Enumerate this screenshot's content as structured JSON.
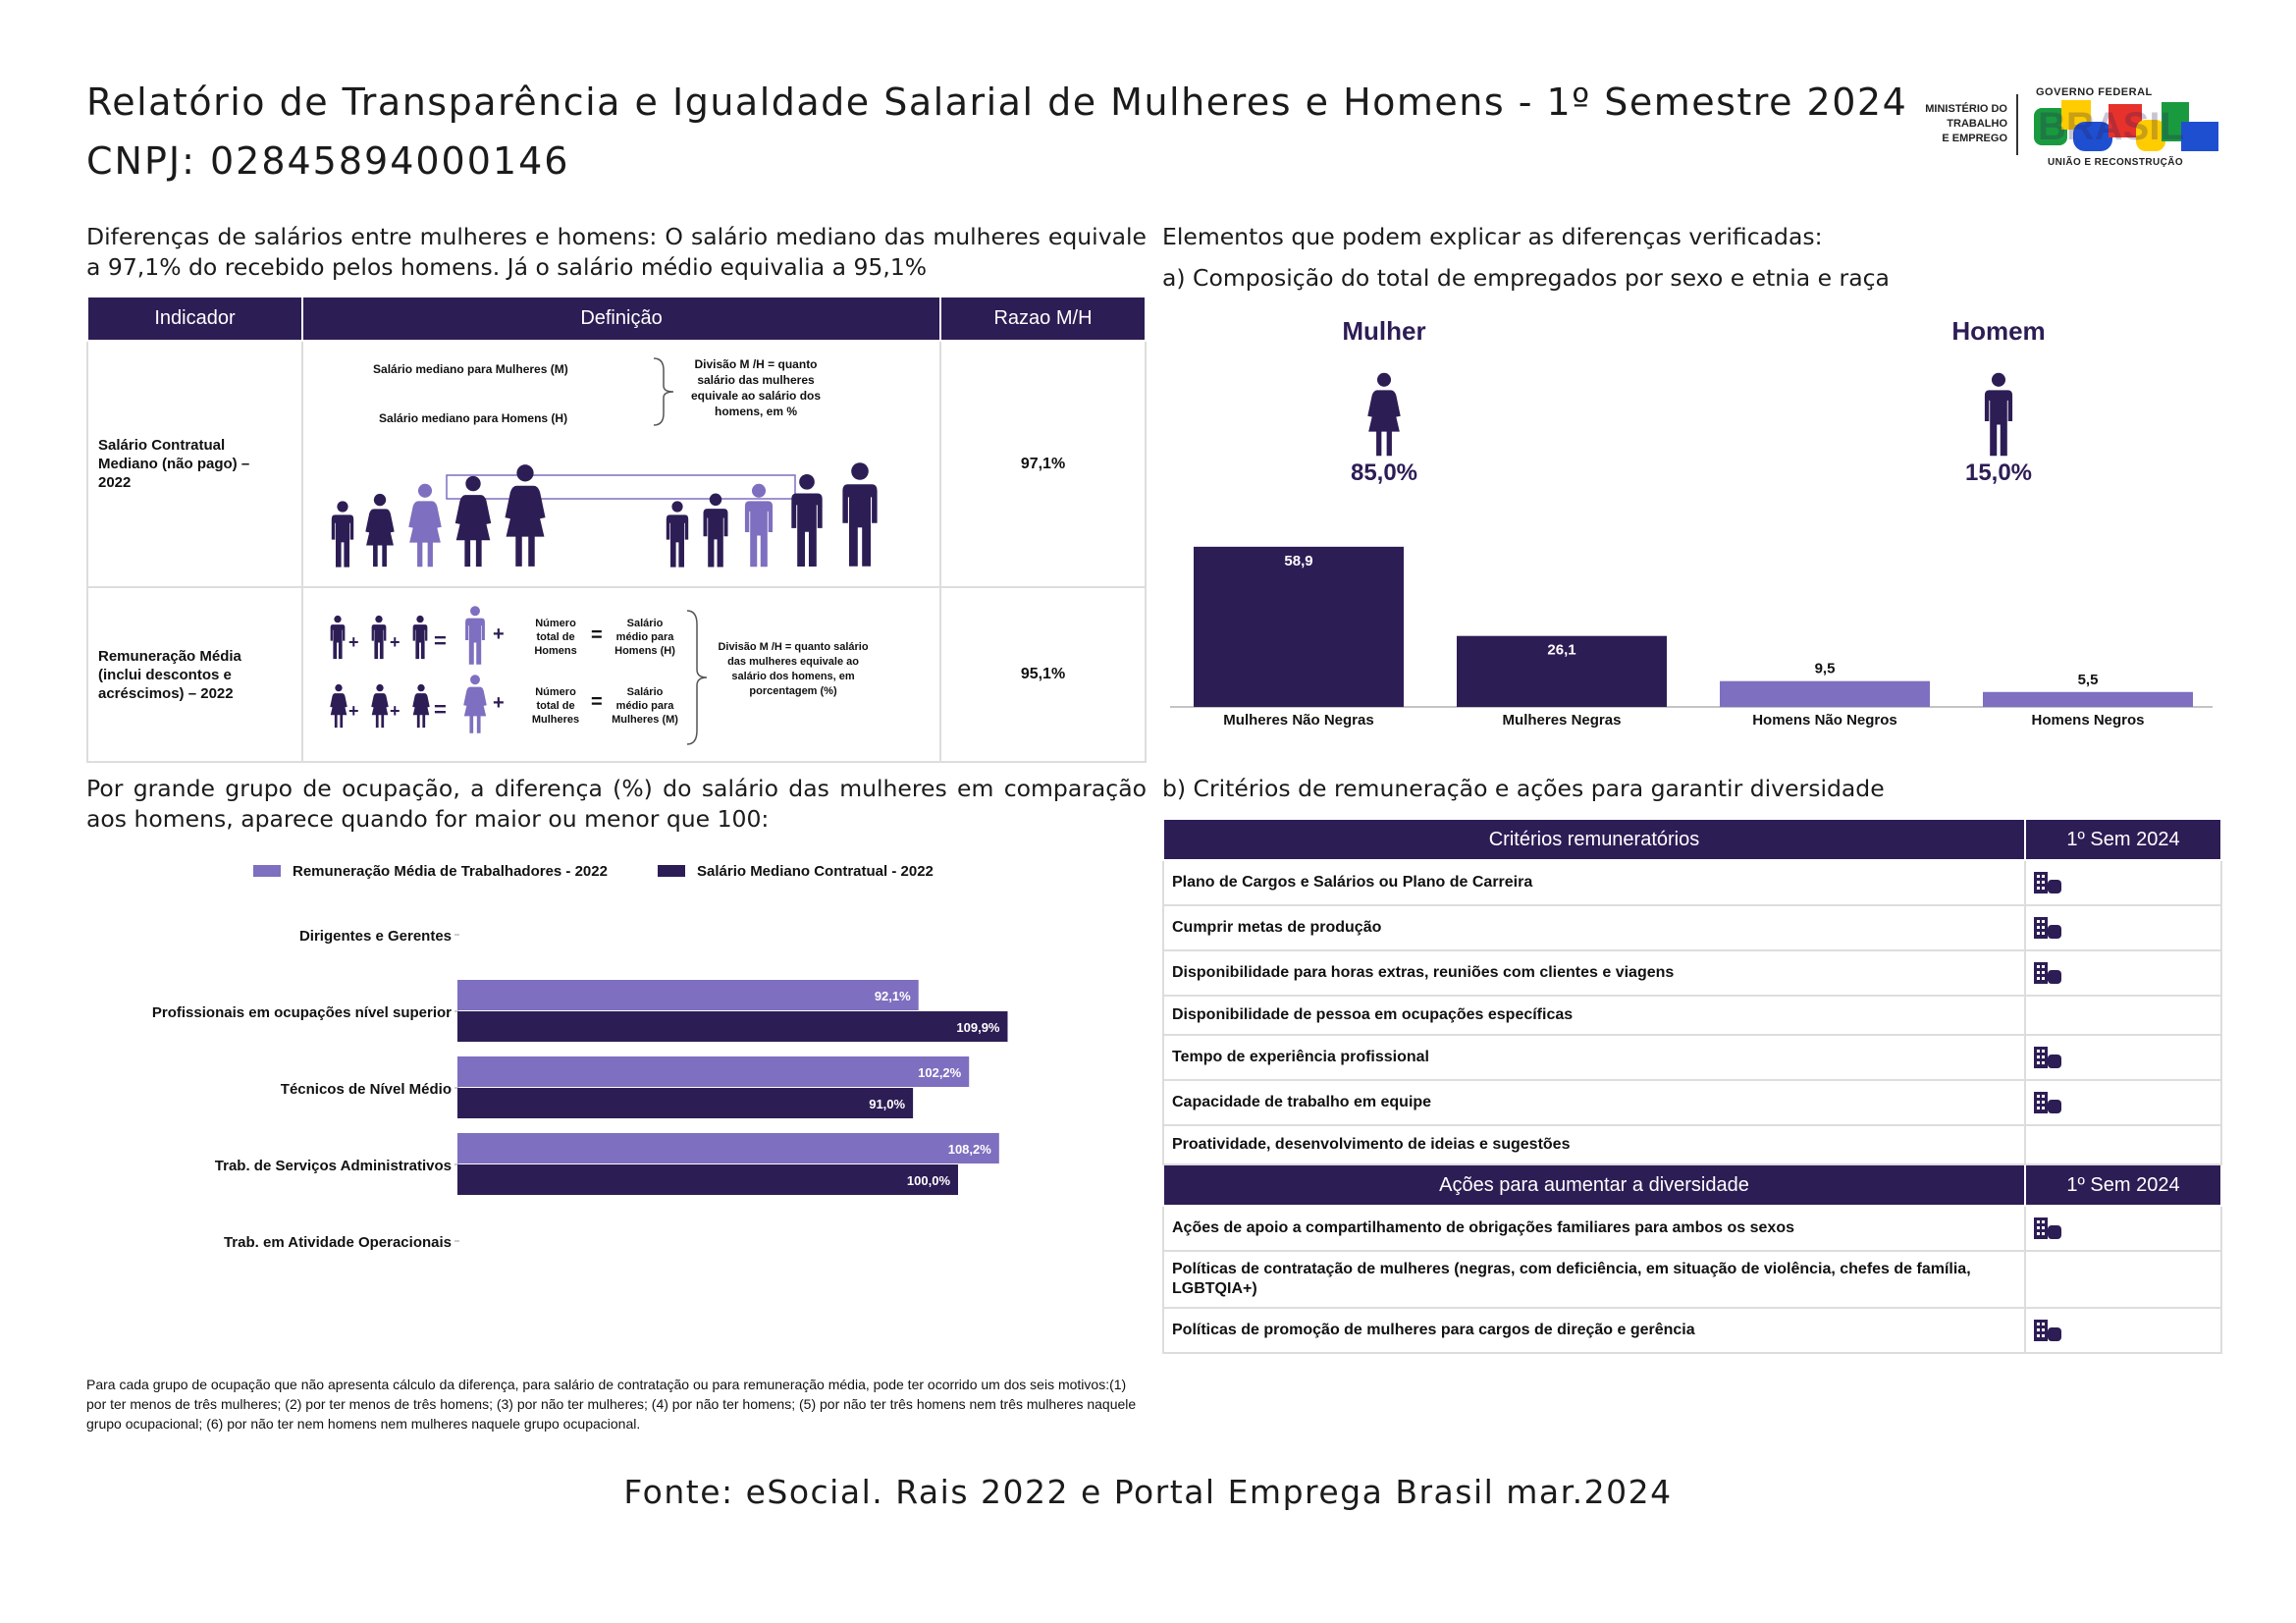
{
  "header": {
    "title": "Relatório de Transparência e Igualdade Salarial de Mulheres e Homens - 1º Semestre 2024",
    "cnpj": "CNPJ: 02845894000146"
  },
  "logos": {
    "mte_l1": "MINISTÉRIO DO",
    "mte_l2": "TRABALHO",
    "mte_l3": "E EMPREGO",
    "gov_top": "GOVERNO FEDERAL",
    "gov_word": "BRASIL",
    "gov_bottom": "UNIÃO E RECONSTRUÇÃO",
    "colors": [
      "#1a9a3f",
      "#ffcc00",
      "#1f4fd1",
      "#e6322b",
      "#6a3fb8"
    ]
  },
  "left_intro": "Diferenças de salários entre mulheres e homens: O salário mediano das mulheres equivale a 97,1% do recebido pelos homens. Já o salário médio equivalia a 95,1%",
  "indicator_table": {
    "headers": [
      "Indicador",
      "Definição",
      "Razao M/H"
    ],
    "row1": {
      "indicator": "Salário Contratual Mediano (não pago) – 2022",
      "def_women": "Salário mediano para Mulheres (M)",
      "def_men": "Salário mediano para Homens (H)",
      "def_division": "Divisão M /H = quanto salário das mulheres equivale ao salário dos homens, em %",
      "ratio": "97,1%"
    },
    "row2": {
      "indicator": "Remuneração Média (inclui descontos e acréscimos) – 2022",
      "eq1_a": "Número total de Homens",
      "eq1_b": "Salário médio para Homens (H)",
      "eq2_a": "Número total de Mulheres",
      "eq2_b": "Salário médio para Mulheres (M)",
      "def_division": "Divisão M /H = quanto salário das mulheres equivale ao salário dos homens, em porcentagem (%)",
      "ratio": "95,1%"
    }
  },
  "left_occupation_intro": "Por grande grupo de ocupação, a diferença (%) do salário das mulheres em comparação aos homens, aparece quando for maior ou menor que 100:",
  "chart_data": [
    {
      "type": "bar",
      "orientation": "horizontal",
      "categories": [
        "Dirigentes e Gerentes",
        "Profissionais em ocupações nível superior",
        "Técnicos de Nível Médio",
        "Trab. de Serviços Administrativos",
        "Trab. em Atividade Operacionais"
      ],
      "series": [
        {
          "name": "Remuneração Média de Trabalhadores - 2022",
          "color": "#7e6fc0",
          "values": [
            null,
            92.1,
            102.2,
            108.2,
            null
          ],
          "labels": [
            "",
            "92,1%",
            "102,2%",
            "108,2%",
            ""
          ]
        },
        {
          "name": "Salário Mediano Contratual - 2022",
          "color": "#2d1d55",
          "values": [
            null,
            109.9,
            91.0,
            100.0,
            null
          ],
          "labels": [
            "",
            "109,9%",
            "91,0%",
            "100,0%",
            ""
          ]
        }
      ],
      "legend": "top"
    },
    {
      "type": "bar",
      "categories": [
        "Mulheres Não Negras",
        "Mulheres Negras",
        "Homens Não Negros",
        "Homens Negros"
      ],
      "values": [
        58.9,
        26.1,
        9.5,
        5.5
      ],
      "labels": [
        "58,9",
        "26,1",
        "9,5",
        "5,5"
      ],
      "colors": [
        "#2d1d55",
        "#2d1d55",
        "#7e6fc0",
        "#7e6fc0"
      ]
    }
  ],
  "footnote": "Para cada grupo de ocupação que não apresenta cálculo da diferença, para salário de contratação ou para remuneração média, pode ter ocorrido um dos seis motivos:(1) por ter menos de três mulheres; (2) por ter menos de três homens; (3) por não ter mulheres; (4) por não ter homens; (5) por não ter três homens nem três mulheres naquele grupo ocupacional; (6) por não ter nem homens nem mulheres naquele grupo ocupacional.",
  "right": {
    "intro": "Elementos que podem explicar as diferenças verificadas:",
    "section_a": "a) Composição do total de empregados por sexo e etnia e raça",
    "mulher_label": "Mulher",
    "mulher_pct": "85,0%",
    "homem_label": "Homem",
    "homem_pct": "15,0%",
    "section_b": "b) Critérios de remuneração e ações para garantir diversidade",
    "criteria_header": "Critérios remuneratórios",
    "sem_header": "1º Sem 2024",
    "criteria": [
      {
        "label": "Plano de Cargos e Salários ou Plano de Carreira",
        "icon": "building-icon"
      },
      {
        "label": "Cumprir metas de produção",
        "icon": "building-icon"
      },
      {
        "label": "Disponibilidade para horas extras, reuniões com clientes e viagens",
        "icon": "building-icon"
      },
      {
        "label": "Disponibilidade de pessoa em ocupações específicas",
        "icon": ""
      },
      {
        "label": "Tempo de experiência profissional",
        "icon": "building-icon"
      },
      {
        "label": "Capacidade de trabalho em equipe",
        "icon": "building-icon"
      },
      {
        "label": "Proatividade, desenvolvimento de ideias e sugestões",
        "icon": ""
      }
    ],
    "actions_header": "Ações para aumentar a diversidade",
    "actions": [
      {
        "label": "Ações de apoio a compartilhamento de obrigações familiares para ambos os sexos",
        "icon": "building-icon"
      },
      {
        "label": "Políticas de contratação de mulheres (negras, com deficiência, em situação de violência, chefes de família, LGBTQIA+)",
        "icon": ""
      },
      {
        "label": "Políticas de promoção de mulheres para cargos de direção e gerência",
        "icon": "building-icon"
      }
    ]
  },
  "source": "Fonte: eSocial. Rais 2022 e Portal Emprega Brasil mar.2024"
}
